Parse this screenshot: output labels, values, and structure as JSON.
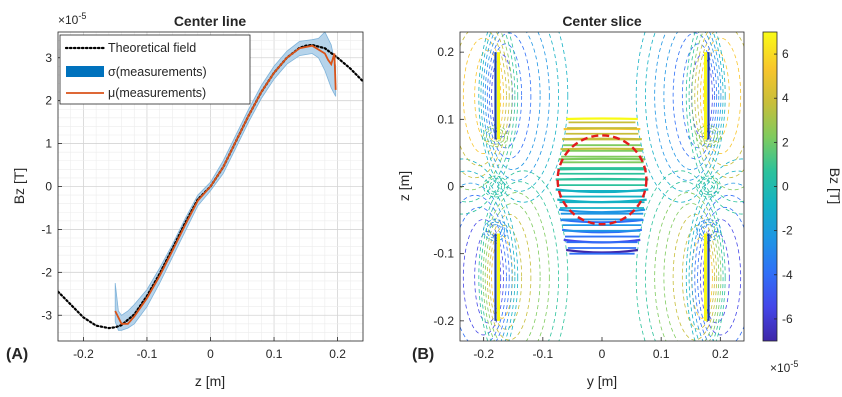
{
  "panels": {
    "a": "(A)",
    "b": "(B)"
  },
  "chart_data": [
    {
      "type": "line",
      "title": "Center line",
      "xlabel": "z [m]",
      "ylabel": "Bz [T]",
      "xlim": [
        -0.24,
        0.24
      ],
      "ylim": [
        -3.6,
        3.6
      ],
      "y_exponent_label": "×10",
      "y_exponent_power": "-5",
      "xticks": [
        "-0.2",
        "-0.1",
        "0",
        "0.1",
        "0.2"
      ],
      "yticks": [
        "-3",
        "-2",
        "-1",
        "0",
        "1",
        "2",
        "3"
      ],
      "xtick_values": [
        -0.2,
        -0.1,
        0,
        0.1,
        0.2
      ],
      "ytick_values": [
        -3,
        -2,
        -1,
        0,
        1,
        2,
        3
      ],
      "grid": "major and minor",
      "legend_position": "top-left",
      "legend": [
        "Theoretical field",
        "σ(measurements)",
        "μ(measurements)"
      ],
      "colors": {
        "theory": "#000000",
        "sigma": "#0072bd",
        "sigma_fill": "#a9cde8",
        "mu": "#d95319"
      },
      "series": [
        {
          "name": "Theoretical field",
          "x": [
            -0.24,
            -0.22,
            -0.2,
            -0.18,
            -0.16,
            -0.15,
            -0.14,
            -0.12,
            -0.1,
            -0.08,
            -0.06,
            -0.04,
            -0.02,
            0,
            0.02,
            0.04,
            0.06,
            0.08,
            0.1,
            0.12,
            0.14,
            0.15,
            0.16,
            0.18,
            0.2,
            0.22,
            0.24
          ],
          "y": [
            -2.45,
            -2.75,
            -3.05,
            -3.24,
            -3.3,
            -3.28,
            -3.23,
            -2.98,
            -2.55,
            -2.03,
            -1.45,
            -0.85,
            -0.3,
            0.0,
            0.45,
            1.05,
            1.65,
            2.2,
            2.65,
            3.0,
            3.23,
            3.28,
            3.3,
            3.22,
            3.0,
            2.75,
            2.45
          ]
        },
        {
          "name": "μ(measurements)",
          "x": [
            -0.15,
            -0.14,
            -0.13,
            -0.12,
            -0.1,
            -0.08,
            -0.06,
            -0.04,
            -0.02,
            0,
            0.02,
            0.04,
            0.06,
            0.08,
            0.1,
            0.12,
            0.14,
            0.16,
            0.18,
            0.185,
            0.19,
            0.195,
            0.197
          ],
          "y": [
            -2.9,
            -3.2,
            -3.2,
            -3.03,
            -2.6,
            -2.08,
            -1.5,
            -0.9,
            -0.33,
            0.0,
            0.45,
            1.05,
            1.65,
            2.2,
            2.65,
            3.0,
            3.22,
            3.28,
            3.1,
            2.95,
            2.85,
            3.1,
            2.25
          ]
        },
        {
          "name": "σ(measurements)",
          "x": [
            -0.15,
            -0.145,
            -0.14,
            -0.13,
            -0.12,
            -0.1,
            -0.08,
            -0.06,
            -0.04,
            -0.02,
            0,
            0.02,
            0.04,
            0.06,
            0.08,
            0.1,
            0.12,
            0.14,
            0.16,
            0.17,
            0.18,
            0.19,
            0.197
          ],
          "upper": [
            -2.25,
            -2.9,
            -3.0,
            -2.9,
            -2.75,
            -2.4,
            -1.9,
            -1.35,
            -0.75,
            -0.2,
            0.1,
            0.6,
            1.2,
            1.8,
            2.35,
            2.8,
            3.15,
            3.38,
            3.42,
            3.45,
            3.6,
            3.3,
            2.8
          ],
          "lower": [
            -3.15,
            -3.35,
            -3.35,
            -3.3,
            -3.2,
            -2.8,
            -2.25,
            -1.65,
            -1.05,
            -0.45,
            -0.1,
            0.3,
            0.9,
            1.5,
            2.05,
            2.5,
            2.85,
            3.05,
            3.1,
            3.0,
            2.7,
            2.3,
            2.1
          ]
        }
      ]
    },
    {
      "type": "heatmap",
      "title": "Center slice",
      "xlabel": "y [m]",
      "ylabel": "z [m]",
      "xlim": [
        -0.24,
        0.24
      ],
      "ylim": [
        -0.23,
        0.23
      ],
      "xticks": [
        "-0.2",
        "-0.1",
        "0",
        "0.1",
        "0.2"
      ],
      "yticks": [
        "-0.2",
        "-0.1",
        "0",
        "0.1",
        "0.2"
      ],
      "xtick_values": [
        -0.2,
        -0.1,
        0,
        0.1,
        0.2
      ],
      "ytick_values": [
        -0.2,
        -0.1,
        0,
        0.1,
        0.2
      ],
      "colorbar_label": "Bz [T]",
      "colorbar_range": [
        -7,
        7
      ],
      "colorbar_ticks": [
        "-6",
        "-4",
        "-2",
        "0",
        "2",
        "4",
        "6"
      ],
      "colorbar_tick_values": [
        -6,
        -4,
        -2,
        0,
        2,
        4,
        6
      ],
      "colorbar_exponent_label": "×10",
      "colorbar_exponent_power": "-5",
      "colormap": [
        "#3e26a8",
        "#4446e8",
        "#2f6ff7",
        "#1e95e4",
        "#14b1c4",
        "#2cc29b",
        "#7fcb5e",
        "#c7be3a",
        "#f8c52c",
        "#f9fb15"
      ],
      "coil_y": [
        -0.18,
        0.18
      ],
      "coil_z_ranges": [
        [
          -0.2,
          -0.07
        ],
        [
          0.07,
          0.2
        ]
      ],
      "target_circle": {
        "center_y": 0,
        "center_z": 0.01,
        "radius": 0.075,
        "color": "#e31a1c"
      },
      "contour_levels": [
        -6.5,
        -5.5,
        -4.5,
        -3.5,
        -2.5,
        -1.5,
        -0.5,
        0.5,
        1.5,
        2.5,
        3.5,
        4.5,
        5.5,
        6.5
      ]
    }
  ]
}
